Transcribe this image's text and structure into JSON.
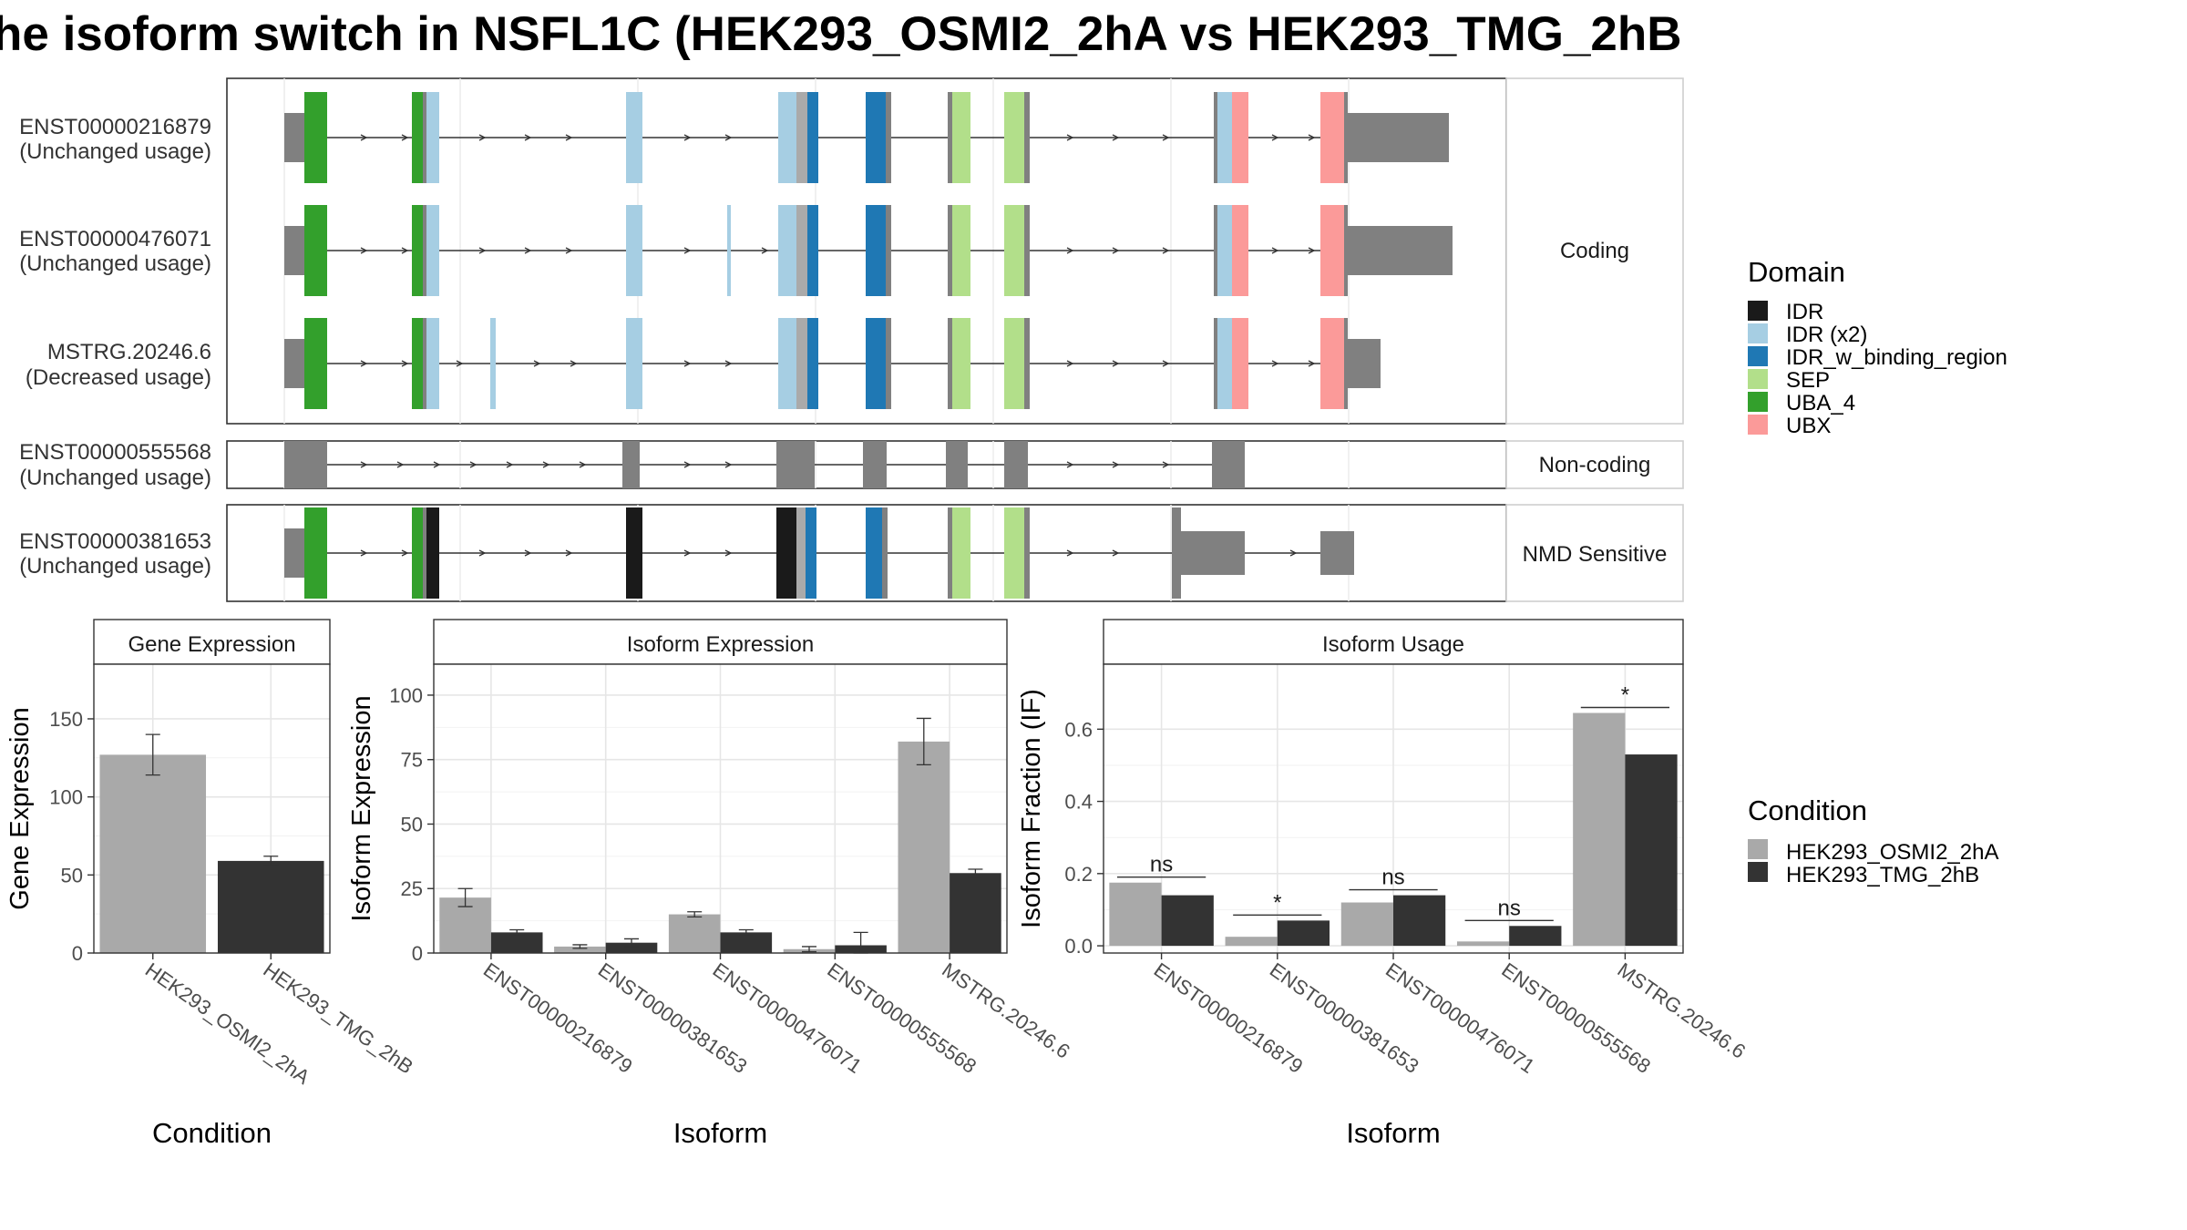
{
  "title": "he isoform switch in NSFL1C (HEK293_OSMI2_2hA vs HEK293_TMG_2hB",
  "colors": {
    "IDR": "#1a1a1a",
    "IDR (x2)": "#a6cee3",
    "IDR_w_binding_region": "#1f78b4",
    "SEP": "#b2df8a",
    "UBA_4": "#33a02c",
    "UBX": "#fb9a99",
    "noncoding": "#808080",
    "cond1": "#a9a9a9",
    "cond2": "#333333"
  },
  "panels": {
    "coding": "Coding",
    "noncoding": "Non-coding",
    "nmd": "NMD Sensitive"
  },
  "isoform_labels": [
    {
      "id": "ENST00000216879",
      "usage": "(Unchanged usage)"
    },
    {
      "id": "ENST00000476071",
      "usage": "(Unchanged usage)"
    },
    {
      "id": "MSTRG.20246.6",
      "usage": "(Decreased usage)"
    },
    {
      "id": "ENST00000555568",
      "usage": "(Unchanged usage)"
    },
    {
      "id": "ENST00000381653",
      "usage": "(Unchanged usage)"
    }
  ],
  "legend_domain": {
    "title": "Domain",
    "items": [
      {
        "label": "IDR",
        "color": "#1a1a1a"
      },
      {
        "label": "IDR (x2)",
        "color": "#a6cee3"
      },
      {
        "label": "IDR_w_binding_region",
        "color": "#1f78b4"
      },
      {
        "label": "SEP",
        "color": "#b2df8a"
      },
      {
        "label": "UBA_4",
        "color": "#33a02c"
      },
      {
        "label": "UBX",
        "color": "#fb9a99"
      }
    ]
  },
  "legend_condition": {
    "title": "Condition",
    "items": [
      {
        "label": "HEK293_OSMI2_2hA",
        "color": "#a9a9a9"
      },
      {
        "label": "HEK293_TMG_2hB",
        "color": "#333333"
      }
    ]
  },
  "chart_data": [
    {
      "type": "bar",
      "title": "Gene Expression",
      "xlabel": "Condition",
      "ylabel": "Gene Expression",
      "categories": [
        "HEK293_OSMI2_2hA",
        "HEK293_TMG_2hB"
      ],
      "values": [
        127,
        59
      ],
      "error_low": [
        114,
        56
      ],
      "error_high": [
        140,
        62
      ],
      "ylim": [
        0,
        185
      ],
      "yticks": [
        0,
        50,
        100,
        150
      ],
      "grid": true
    },
    {
      "type": "bar",
      "title": "Isoform Expression",
      "xlabel": "Isoform",
      "ylabel": "Isoform Expression",
      "categories": [
        "ENST00000216879",
        "ENST00000381653",
        "ENST00000476071",
        "ENST00000555568",
        "MSTRG.20246.6"
      ],
      "series": [
        {
          "name": "HEK293_OSMI2_2hA",
          "values": [
            21.5,
            2.5,
            15,
            1.5,
            82
          ],
          "error_low": [
            18,
            1.8,
            14,
            0.5,
            73
          ],
          "error_high": [
            25,
            3.2,
            16,
            2.5,
            91
          ]
        },
        {
          "name": "HEK293_TMG_2hB",
          "values": [
            8,
            4,
            8,
            3,
            31
          ],
          "error_low": [
            7,
            2.5,
            7,
            0,
            29.5
          ],
          "error_high": [
            9,
            5.5,
            9,
            8,
            32.5
          ]
        }
      ],
      "ylim": [
        0,
        112
      ],
      "yticks": [
        0,
        25,
        50,
        75,
        100
      ],
      "grid": true
    },
    {
      "type": "bar",
      "title": "Isoform Usage",
      "xlabel": "Isoform",
      "ylabel": "Isoform Fraction (IF)",
      "categories": [
        "ENST00000216879",
        "ENST00000381653",
        "ENST00000476071",
        "ENST00000555568",
        "MSTRG.20246.6"
      ],
      "series": [
        {
          "name": "HEK293_OSMI2_2hA",
          "values": [
            0.175,
            0.025,
            0.12,
            0.012,
            0.645
          ]
        },
        {
          "name": "HEK293_TMG_2hB",
          "values": [
            0.14,
            0.07,
            0.14,
            0.055,
            0.53
          ]
        }
      ],
      "significance": [
        "ns",
        "*",
        "ns",
        "ns",
        "*"
      ],
      "ylim": [
        -0.02,
        0.78
      ],
      "yticks": [
        0.0,
        0.2,
        0.4,
        0.6
      ],
      "ytick_labels": [
        "0.0",
        "0.2",
        "0.4",
        "0.6"
      ],
      "grid": true
    }
  ]
}
